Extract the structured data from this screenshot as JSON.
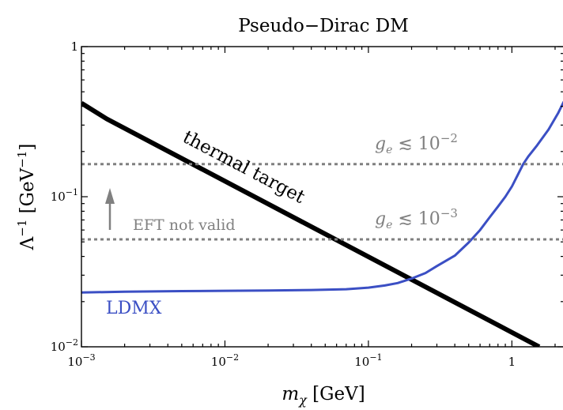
{
  "chart_data": {
    "type": "line",
    "title": "Pseudo−Dirac DM",
    "xlabel": "mχ [GeV]",
    "ylabel": "Λ⁻¹ [GeV⁻¹]",
    "xscale": "log",
    "yscale": "log",
    "xlim": [
      0.001,
      2.3
    ],
    "ylim": [
      0.01,
      1
    ],
    "grid": false,
    "xticks": [
      {
        "value": 0.001,
        "base": "10",
        "exp": "−3"
      },
      {
        "value": 0.01,
        "base": "10",
        "exp": "−2"
      },
      {
        "value": 0.1,
        "base": "10",
        "exp": "−1"
      },
      {
        "value": 1,
        "base": "1",
        "exp": ""
      }
    ],
    "yticks": [
      {
        "value": 0.01,
        "base": "10",
        "exp": "−2"
      },
      {
        "value": 0.1,
        "base": "10",
        "exp": "−1"
      },
      {
        "value": 1,
        "base": "1",
        "exp": ""
      }
    ],
    "series": [
      {
        "name": "thermal target",
        "color": "#000000",
        "style": "solid",
        "x": [
          0.001,
          0.0015,
          1.55
        ],
        "y": [
          0.42,
          0.33,
          0.01
        ]
      },
      {
        "name": "LDMX",
        "color": "#3b4fc4",
        "style": "solid",
        "x": [
          0.001,
          0.002,
          0.005,
          0.01,
          0.02,
          0.04,
          0.07,
          0.1,
          0.13,
          0.16,
          0.2,
          0.25,
          0.3,
          0.4,
          0.5,
          0.6,
          0.7,
          0.8,
          0.9,
          1.0,
          1.1,
          1.2,
          1.3,
          1.5,
          1.8,
          2.1,
          2.3
        ],
        "y": [
          0.023,
          0.0233,
          0.0235,
          0.0236,
          0.0237,
          0.0239,
          0.0242,
          0.0248,
          0.0256,
          0.0266,
          0.0285,
          0.031,
          0.0345,
          0.0405,
          0.0495,
          0.06,
          0.073,
          0.086,
          0.1,
          0.117,
          0.14,
          0.165,
          0.185,
          0.22,
          0.28,
          0.36,
          0.43
        ]
      },
      {
        "name": "",
        "color": "#808080",
        "style": "dotted",
        "x": [
          0.001,
          2.3
        ],
        "y": [
          0.165,
          0.165
        ]
      },
      {
        "name": "",
        "color": "#808080",
        "style": "dotted",
        "x": [
          0.001,
          2.3
        ],
        "y": [
          0.052,
          0.052
        ]
      }
    ],
    "annotations": [
      {
        "id": "label-ge-2",
        "text": "g",
        "sub": "e",
        "rel": " ≲ 10",
        "exp": "−2",
        "color": "#808080"
      },
      {
        "id": "label-ge-3",
        "text": "g",
        "sub": "e",
        "rel": " ≲ 10",
        "exp": "−3",
        "color": "#808080"
      },
      {
        "id": "label-eft",
        "text": "EFT not valid",
        "color": "#808080"
      },
      {
        "id": "label-thermal",
        "text": "thermal target",
        "color": "#000000"
      },
      {
        "id": "label-ldmx",
        "text": "LDMX",
        "color": "#3b4fc4"
      }
    ]
  }
}
